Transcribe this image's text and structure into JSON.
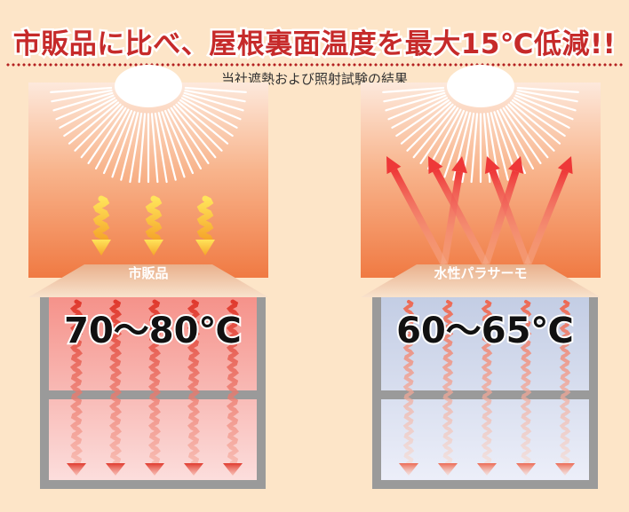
{
  "headline": "市販品に比べ、屋根裏面温度を最大15℃低減!!",
  "subtitle": "当社遮熱および照射試験の結果",
  "panels": [
    {
      "label": "市販品",
      "temperature": "70～80℃"
    },
    {
      "label": "水性パラサーモ",
      "temperature": "60～65℃"
    }
  ],
  "colors": {
    "headline": "#c62a2a",
    "page_background": "#fde5c8",
    "sky_top": "#fbe2d2",
    "sky_bottom": "#f07a43",
    "roof": "#f6dcc0",
    "commercial_interior": "#f59a92",
    "paint_interior": "#c7d1e7",
    "house_frame": "#9a9a9a",
    "heat_wave": "#e23b30",
    "reflect_arrow": "#ee3838",
    "sun_ray": "#ffffff"
  },
  "icons": [
    "sun-icon",
    "heat-wave-arrow-icon",
    "reflected-ray-arrow-icon",
    "house-frame-icon"
  ]
}
